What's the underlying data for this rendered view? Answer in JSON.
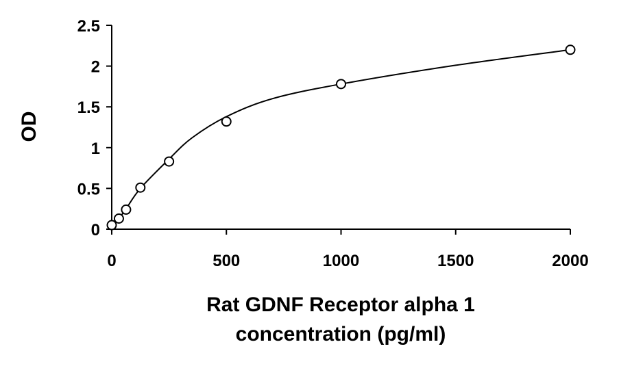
{
  "chart_data": {
    "type": "scatter",
    "xlabel": [
      "Rat GDNF Receptor alpha 1",
      "concentration (pg/ml)"
    ],
    "ylabel": "OD",
    "xlim": [
      0,
      2000
    ],
    "ylim": [
      0,
      2.5
    ],
    "x_ticks": [
      "0",
      "500",
      "1000",
      "1500",
      "2000"
    ],
    "y_ticks": [
      "0",
      "0.5",
      "1",
      "1.5",
      "2",
      "2.5"
    ],
    "grid": false,
    "legend": "none",
    "series": [
      {
        "x": [
          0,
          31.25,
          62.5,
          125,
          250,
          500,
          1000,
          2000
        ],
        "y": [
          0.05,
          0.13,
          0.24,
          0.51,
          0.83,
          1.32,
          1.78,
          2.2
        ]
      }
    ],
    "fit_curve": {
      "x": [
        0,
        31.25,
        62.5,
        125,
        250,
        350,
        500,
        700,
        1000,
        1500,
        2000
      ],
      "y": [
        0.04,
        0.13,
        0.25,
        0.5,
        0.86,
        1.12,
        1.38,
        1.6,
        1.78,
        2.01,
        2.2
      ]
    },
    "colors": {
      "axis": "#000000",
      "marker": "#000000",
      "curve": "#000000"
    }
  }
}
